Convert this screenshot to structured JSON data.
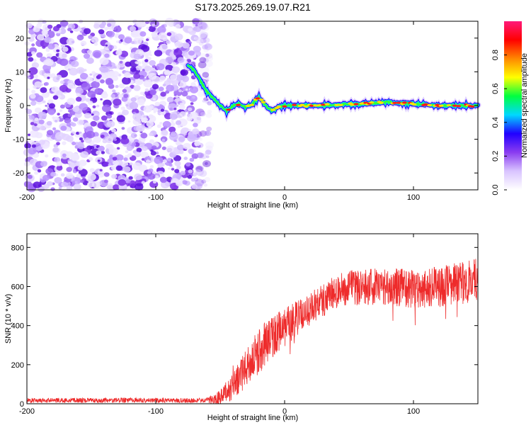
{
  "figure_title": "S173.2025.269.19.07.R21",
  "colors": {
    "snr_line": "#ee2b2b",
    "noise_purple": "#8a3cf0",
    "axis": "#000000"
  },
  "chart_data": [
    {
      "type": "heatmap",
      "name": "spectrogram",
      "xlabel": "Height of straight line (km)",
      "ylabel": "Frequency (Hz)",
      "xlim": [
        -200,
        150
      ],
      "ylim": [
        -25,
        25
      ],
      "x_ticks": [
        {
          "value": -200,
          "label": "-200"
        },
        {
          "value": -100,
          "label": "-100"
        },
        {
          "value": 0,
          "label": "0"
        },
        {
          "value": 100,
          "label": "100"
        }
      ],
      "y_ticks": [
        {
          "value": 20,
          "label": "20"
        },
        {
          "value": 10,
          "label": "10"
        },
        {
          "value": 0,
          "label": "0"
        },
        {
          "value": -10,
          "label": "-10"
        },
        {
          "value": -20,
          "label": "-20"
        }
      ],
      "noise_region_x": [
        -200,
        -62
      ],
      "carrier_track": {
        "x": [
          -75,
          -70,
          -65,
          -60,
          -55,
          -50,
          -45,
          -40,
          -35,
          -30,
          -25,
          -20,
          -15,
          -10,
          -5,
          0,
          20,
          40,
          60,
          80,
          100,
          120,
          150
        ],
        "frequency": [
          12,
          10.5,
          7,
          4,
          2,
          0,
          -1.5,
          0,
          0.5,
          -0.5,
          0.5,
          2.5,
          0,
          -1.5,
          -0.5,
          0,
          0,
          0.2,
          0.5,
          1,
          0.5,
          0,
          0
        ]
      },
      "colorbar": {
        "label": "Normalized spectral amplitude",
        "range": [
          0,
          1
        ],
        "ticks": [
          {
            "value": 0,
            "label": "0.0"
          },
          {
            "value": 0.2,
            "label": "0.2"
          },
          {
            "value": 0.4,
            "label": "0.4"
          },
          {
            "value": 0.6,
            "label": "0.6"
          },
          {
            "value": 0.8,
            "label": "0.8"
          }
        ],
        "stops": [
          "#ffffff",
          "#d9c4ff",
          "#8a3cf0",
          "#2000ff",
          "#00d8ff",
          "#00ff40",
          "#ffff00",
          "#ff8800",
          "#ff0000",
          "#ff1a7a"
        ]
      }
    },
    {
      "type": "line",
      "name": "snr",
      "xlabel": "Height of straight line (km)",
      "ylabel": "SNR (10 * v/v)",
      "xlim": [
        -200,
        150
      ],
      "ylim": [
        0,
        870
      ],
      "x_ticks": [
        {
          "value": -200,
          "label": "-200"
        },
        {
          "value": -100,
          "label": "-100"
        },
        {
          "value": 0,
          "label": "0"
        },
        {
          "value": 100,
          "label": "100"
        }
      ],
      "y_ticks": [
        {
          "value": 800,
          "label": "800"
        },
        {
          "value": 600,
          "label": "600"
        },
        {
          "value": 400,
          "label": "400"
        },
        {
          "value": 200,
          "label": "200"
        },
        {
          "value": 0,
          "label": "0"
        }
      ],
      "trend": {
        "x": [
          -200,
          -60,
          -50,
          -40,
          -30,
          -20,
          -10,
          0,
          10,
          20,
          30,
          40,
          50,
          60,
          80,
          100,
          120,
          140,
          150
        ],
        "y": [
          15,
          15,
          30,
          90,
          180,
          270,
          340,
          390,
          440,
          490,
          530,
          570,
          590,
          600,
          600,
          590,
          600,
          620,
          640
        ],
        "noise_amplitude": {
          "x": [
            -200,
            -60,
            -40,
            -20,
            0,
            20,
            40,
            80,
            150
          ],
          "y": [
            15,
            15,
            70,
            120,
            100,
            80,
            90,
            100,
            110
          ]
        }
      }
    }
  ]
}
